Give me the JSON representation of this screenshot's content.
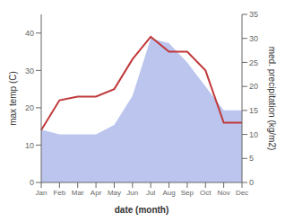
{
  "chart_data": {
    "type": "line",
    "xlabel": "date (month)",
    "ylabel": "max temp (C)",
    "y2label": "med. precipitation (kg/m2)",
    "categories": [
      "Jan",
      "Feb",
      "Mar",
      "Apr",
      "May",
      "Jun",
      "Jul",
      "Aug",
      "Sep",
      "Oct",
      "Nov",
      "Dec"
    ],
    "series": [
      {
        "type": "area",
        "axis": "y2",
        "color": "#bbc5ee",
        "values": [
          11,
          10,
          10,
          10,
          12,
          18,
          30,
          29,
          25,
          20,
          15,
          15
        ]
      },
      {
        "type": "line",
        "color": "#c0393b",
        "values": [
          14,
          22,
          23,
          23,
          25,
          33,
          39,
          35,
          35,
          30,
          16,
          16
        ]
      }
    ],
    "ylim": [
      0,
      45
    ],
    "yticks": [
      0,
      10,
      20,
      30,
      40
    ],
    "y2lim": [
      0,
      35
    ],
    "y2ticks": [
      0,
      5,
      10,
      15,
      20,
      25,
      30,
      35
    ],
    "grid": false
  }
}
